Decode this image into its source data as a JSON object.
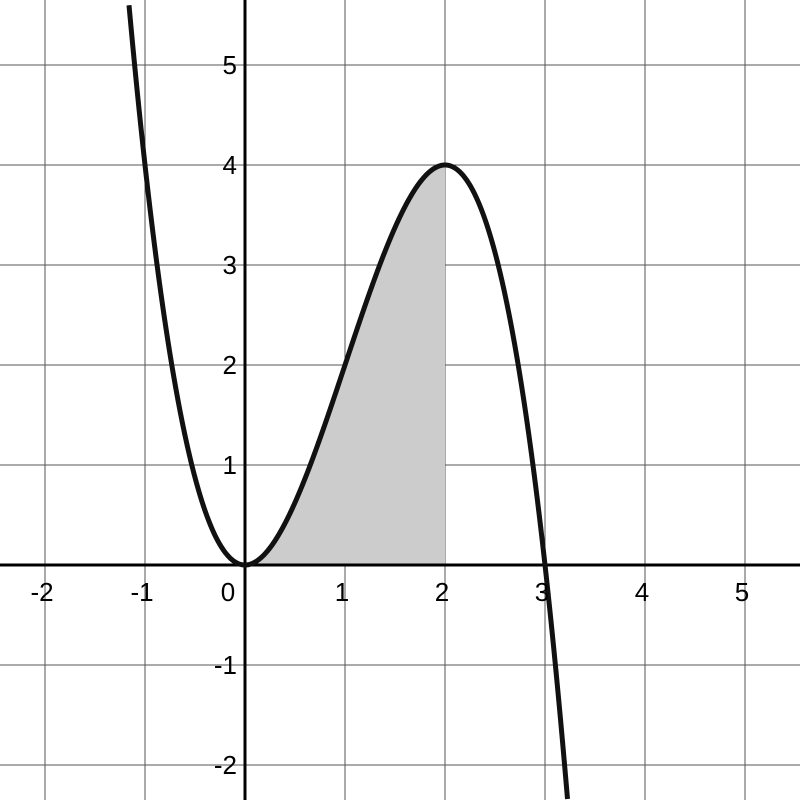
{
  "chart_data": {
    "type": "line",
    "function": "-x^3 + 3x^2",
    "xlim": [
      -2.45,
      5.55
    ],
    "ylim": [
      -2.35,
      5.65
    ],
    "grid": true,
    "x_ticks": [
      -2,
      -1,
      0,
      1,
      2,
      3,
      4,
      5
    ],
    "y_ticks": [
      -2,
      -1,
      1,
      2,
      3,
      4,
      5
    ],
    "x_tick_labels": [
      "-2",
      "-1",
      "0",
      "1",
      "2",
      "3",
      "4",
      "5"
    ],
    "y_tick_labels": [
      "-2",
      "-1",
      "1",
      "2",
      "3",
      "4",
      "5"
    ],
    "shaded_region": {
      "from": 0,
      "to": 2,
      "under": "curve",
      "color": "#cccccc"
    },
    "key_points": [
      {
        "x": -1,
        "y": 4
      },
      {
        "x": 0,
        "y": 0
      },
      {
        "x": 1,
        "y": 2
      },
      {
        "x": 2,
        "y": 4
      },
      {
        "x": 3,
        "y": 0
      }
    ],
    "colors": {
      "curve": "#111111",
      "grid": "#555555",
      "axis": "#000000",
      "shade": "#cccccc"
    }
  }
}
